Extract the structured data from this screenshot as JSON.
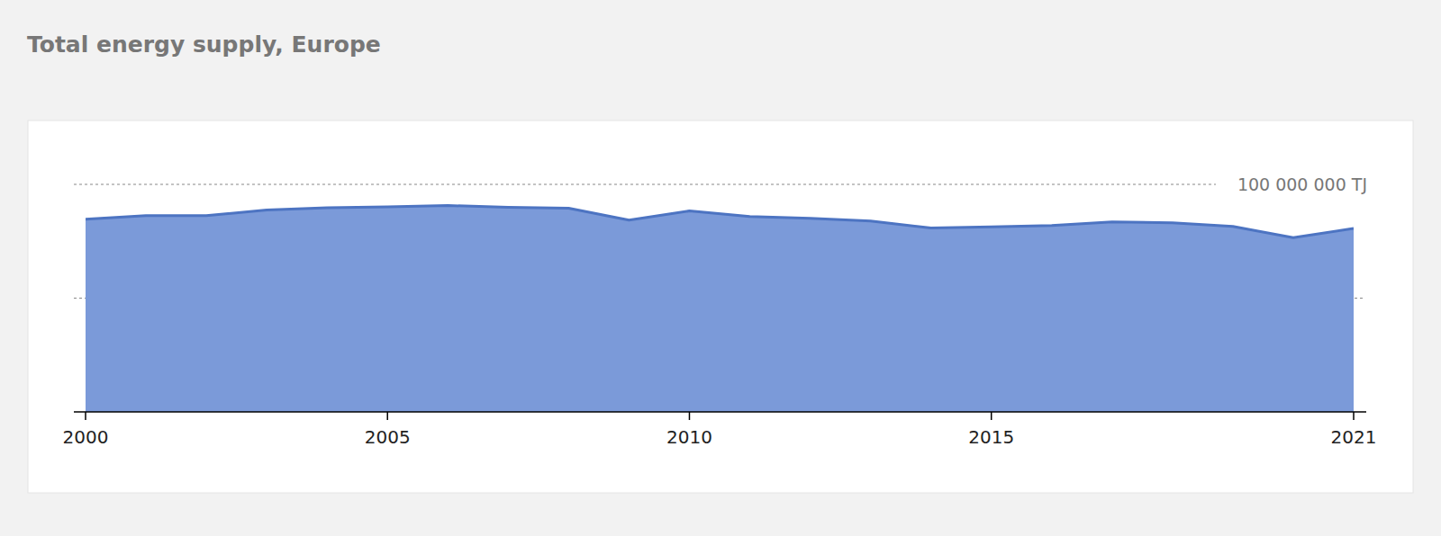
{
  "chart_data": {
    "type": "area",
    "title": "Total energy supply, Europe",
    "x": [
      2000,
      2001,
      2002,
      2003,
      2004,
      2005,
      2006,
      2007,
      2008,
      2009,
      2010,
      2011,
      2012,
      2013,
      2014,
      2015,
      2016,
      2017,
      2018,
      2019,
      2020,
      2021
    ],
    "values": [
      84700000,
      86300000,
      86300000,
      88700000,
      89700000,
      90100000,
      90700000,
      89900000,
      89500000,
      84300000,
      88300000,
      85900000,
      85100000,
      83900000,
      80800000,
      81300000,
      81900000,
      83500000,
      83100000,
      81500000,
      76600000,
      80600000
    ],
    "color": "#7b9ad9",
    "xlim": [
      2000,
      2021
    ],
    "xticks": [
      2000,
      2005,
      2010,
      2015,
      2021
    ],
    "ylim": [
      0,
      100000000
    ],
    "yticks": [
      {
        "value": 50000000,
        "label": null
      },
      {
        "value": 100000000,
        "label": "100 000 000 TJ"
      }
    ],
    "grid": true
  }
}
